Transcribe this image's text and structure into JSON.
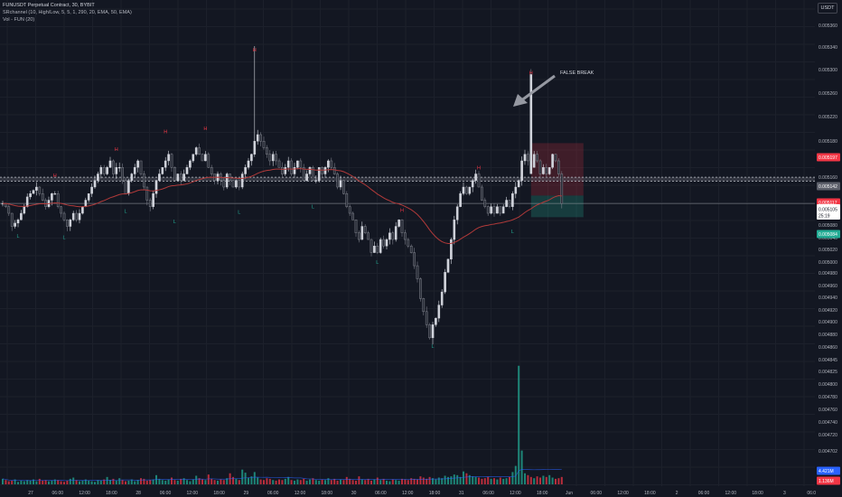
{
  "header": {
    "symbol_line": "FUNUSDT Perpetual Contract, 30, BYBIT",
    "indicator1": "SRchannel (10, High/Low, 5, 5, 1, 290, 20, EMA, 50, EMA)",
    "indicator2": "Vol - FUN (20)"
  },
  "currency_button": "USDT",
  "annotation": "FALSE BREAK",
  "tags": {
    "price": "0.005105",
    "countdown": "25:19",
    "target": "0.005197",
    "channel": "0.005142",
    "entry": "0.005117",
    "stop": "0.005084",
    "vol_top": "4.421M",
    "vol_bottom": "1.136M"
  },
  "colors": {
    "background": "#131722",
    "bull": "#d1d4dc",
    "bear": "#2a2e39",
    "ema": "#b23a3a",
    "channel": "#787b86",
    "vol_up": "#22ab94",
    "vol_down": "#f23645",
    "target_zone": "#f23645",
    "stop_zone": "#22ab94"
  },
  "chart_data": {
    "type": "candlestick",
    "symbol": "FUNUSDT",
    "interval": "30",
    "exchange": "BYBIT",
    "price_axis_labels": [
      "0.005360",
      "0.005340",
      "0.005300",
      "0.005260",
      "0.005220",
      "0.005180",
      "0.005160",
      "0.005120",
      "0.005080",
      "0.005040",
      "0.005020",
      "0.005000",
      "0.004980",
      "0.004960",
      "0.004940",
      "0.004920",
      "0.004900",
      "0.004880",
      "0.004860",
      "0.004845",
      "0.004825",
      "0.004800",
      "0.004780",
      "0.004760",
      "0.004740",
      "0.004720",
      "0.004702"
    ],
    "price_range": [
      0.00485,
      0.00539
    ],
    "time_axis_labels": [
      "27",
      "06:00",
      "12:00",
      "18:00",
      "28",
      "06:00",
      "12:00",
      "18:00",
      "29",
      "06:00",
      "12:00",
      "18:00",
      "30",
      "06:00",
      "12:00",
      "18:00",
      "31",
      "06:00",
      "12:00",
      "18:00",
      "Jun",
      "06:00",
      "12:00",
      "18:00",
      "2",
      "06:00",
      "12:00",
      "18:00",
      "3",
      "06:0"
    ],
    "ema": "50 EMA",
    "sr_channel": [
      0.005139,
      0.005145
    ],
    "current_price": 0.005105,
    "position": {
      "target": 0.005197,
      "entry": 0.005117,
      "stop": 0.005084
    },
    "pivots": [
      {
        "label": "L",
        "t": 5,
        "price": 0.005065
      },
      {
        "label": "H",
        "t": 17,
        "price": 0.005138
      },
      {
        "label": "L",
        "t": 20,
        "price": 0.005063
      },
      {
        "label": "H",
        "t": 37,
        "price": 0.005178
      },
      {
        "label": "L",
        "t": 40,
        "price": 0.005103
      },
      {
        "label": "H",
        "t": 53,
        "price": 0.005205
      },
      {
        "label": "L",
        "t": 56,
        "price": 0.005087
      },
      {
        "label": "H",
        "t": 66,
        "price": 0.00521
      },
      {
        "label": "L",
        "t": 77,
        "price": 0.005102
      },
      {
        "label": "H",
        "t": 82,
        "price": 0.00533
      },
      {
        "label": "L",
        "t": 101,
        "price": 0.00511
      },
      {
        "label": "L",
        "t": 122,
        "price": 0.005025
      },
      {
        "label": "H",
        "t": 130,
        "price": 0.005085
      },
      {
        "label": "L",
        "t": 140,
        "price": 0.004897
      },
      {
        "label": "H",
        "t": 155,
        "price": 0.00515
      },
      {
        "label": "L",
        "t": 166,
        "price": 0.005072
      },
      {
        "label": "H",
        "t": 172,
        "price": 0.005295
      }
    ],
    "closes": [
      0.005105,
      0.0051,
      0.00509,
      0.00507,
      0.005075,
      0.00508,
      0.00509,
      0.0051,
      0.005115,
      0.00512,
      0.005125,
      0.00513,
      0.00512,
      0.00511,
      0.0051,
      0.00511,
      0.00512,
      0.00512,
      0.0051,
      0.00509,
      0.00508,
      0.00507,
      0.00508,
      0.00509,
      0.00508,
      0.00509,
      0.0051,
      0.00511,
      0.00512,
      0.00513,
      0.00514,
      0.00515,
      0.00516,
      0.00515,
      0.00516,
      0.00517,
      0.00515,
      0.00516,
      0.00516,
      0.00514,
      0.00512,
      0.00514,
      0.00515,
      0.00516,
      0.00517,
      0.00515,
      0.00513,
      0.00511,
      0.0051,
      0.00512,
      0.00514,
      0.00515,
      0.00516,
      0.00517,
      0.00518,
      0.00516,
      0.00514,
      0.00515,
      0.00514,
      0.00515,
      0.00516,
      0.00517,
      0.00518,
      0.00519,
      0.00518,
      0.00517,
      0.00518,
      0.00516,
      0.00515,
      0.00514,
      0.00515,
      0.00514,
      0.00513,
      0.00515,
      0.00514,
      0.00513,
      0.00514,
      0.00513,
      0.00515,
      0.00516,
      0.00517,
      0.00518,
      0.0052,
      0.00521,
      0.0052,
      0.00519,
      0.00518,
      0.00517,
      0.00518,
      0.00517,
      0.00516,
      0.00515,
      0.00516,
      0.00517,
      0.00515,
      0.00516,
      0.00517,
      0.00516,
      0.00514,
      0.00515,
      0.00516,
      0.00514,
      0.00514,
      0.00516,
      0.00515,
      0.00516,
      0.00517,
      0.00516,
      0.00515,
      0.00513,
      0.00514,
      0.00512,
      0.0051,
      0.00509,
      0.00508,
      0.00506,
      0.00505,
      0.00507,
      0.00506,
      0.00505,
      0.00503,
      0.00504,
      0.00503,
      0.00505,
      0.00504,
      0.00505,
      0.00506,
      0.00505,
      0.00507,
      0.00508,
      0.00506,
      0.00505,
      0.00504,
      0.00503,
      0.00501,
      0.00499,
      0.00496,
      0.00494,
      0.00492,
      0.0049,
      0.00492,
      0.00493,
      0.00495,
      0.00497,
      0.005,
      0.00502,
      0.00505,
      0.00508,
      0.0051,
      0.00512,
      0.00513,
      0.00512,
      0.00513,
      0.00514,
      0.00515,
      0.00513,
      0.00511,
      0.0051,
      0.00509,
      0.0051,
      0.00509,
      0.0051,
      0.00509,
      0.0051,
      0.00511,
      0.0051,
      0.00512,
      0.00513,
      0.00514,
      0.00517,
      0.00518,
      0.00517,
      0.00516,
      0.00518,
      0.00517,
      0.00515,
      0.00516,
      0.00515,
      0.00516,
      0.00518,
      0.00517,
      0.00515,
      0.005105
    ],
    "volumes": [
      0.9,
      0.7,
      0.5,
      0.6,
      0.8,
      0.4,
      0.6,
      0.5,
      0.7,
      0.6,
      0.8,
      0.5,
      0.9,
      0.6,
      0.7,
      0.5,
      0.6,
      0.8,
      0.7,
      0.5,
      0.4,
      0.6,
      0.9,
      1.1,
      0.7,
      0.5,
      0.6,
      0.8,
      0.6,
      0.5,
      0.4,
      0.7,
      0.6,
      0.8,
      1.2,
      0.7,
      0.9,
      0.6,
      1.0,
      0.7,
      0.5,
      0.6,
      0.8,
      0.5,
      0.7,
      1.0,
      0.9,
      0.6,
      0.7,
      0.8,
      1.5,
      0.9,
      0.7,
      0.6,
      0.8,
      1.1,
      0.7,
      0.6,
      0.9,
      1.0,
      0.7,
      0.5,
      0.8,
      1.4,
      1.0,
      0.8,
      0.7,
      1.6,
      0.9,
      0.7,
      0.6,
      0.8,
      0.7,
      1.0,
      1.8,
      1.2,
      0.9,
      0.7,
      2.4,
      1.9,
      1.1,
      1.3,
      2.0,
      1.1,
      0.8,
      0.7,
      1.0,
      0.9,
      0.7,
      0.6,
      0.8,
      0.7,
      0.9,
      1.2,
      0.7,
      0.6,
      0.8,
      0.7,
      0.9,
      0.6,
      0.8,
      1.0,
      0.7,
      0.6,
      0.8,
      0.7,
      1.0,
      0.7,
      0.9,
      0.6,
      0.8,
      0.7,
      1.2,
      0.9,
      0.7,
      0.6,
      1.3,
      0.8,
      0.7,
      0.9,
      0.6,
      0.8,
      1.1,
      0.7,
      0.9,
      0.6,
      0.5,
      0.8,
      0.7,
      0.6,
      0.9,
      0.8,
      0.7,
      1.0,
      0.9,
      0.8,
      1.3,
      1.1,
      0.9,
      1.2,
      1.0,
      0.8,
      1.1,
      1.0,
      1.4,
      1.2,
      1.3,
      1.6,
      1.5,
      1.2,
      2.1,
      1.8,
      1.5,
      1.3,
      1.2,
      1.1,
      0.9,
      1.0,
      1.2,
      0.9,
      1.0,
      0.8,
      1.1,
      0.9,
      1.0,
      1.2,
      2.0,
      3.0,
      19.3,
      5.5,
      1.8,
      1.5,
      1.2,
      1.0,
      1.3,
      1.1,
      1.4,
      1.2,
      1.5,
      1.1,
      0.9,
      1.0,
      1.2
    ],
    "volume_axis_labels": [
      "0.004860",
      "0.004845",
      "0.004825",
      "0.004800",
      "0.004780",
      "0.004760",
      "0.004740",
      "0.004720",
      "0.004702"
    ]
  }
}
